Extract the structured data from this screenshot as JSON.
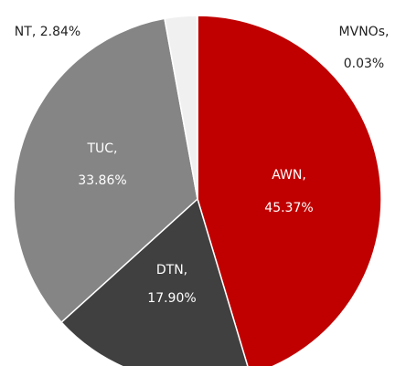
{
  "chart_data": {
    "type": "pie",
    "labels": [
      [
        "AWN,",
        "45.37%"
      ],
      [
        "DTN,",
        "17.90%"
      ],
      [
        "TUC,",
        "33.86%"
      ],
      [
        "NT, 2.84%"
      ],
      [
        "MVNOs,",
        "0.03%"
      ]
    ],
    "values": [
      45.37,
      17.9,
      33.86,
      2.84,
      0.03
    ],
    "colors": [
      "#c00000",
      "#404040",
      "#858585",
      "#f0f0f0",
      "#ffffff"
    ]
  }
}
